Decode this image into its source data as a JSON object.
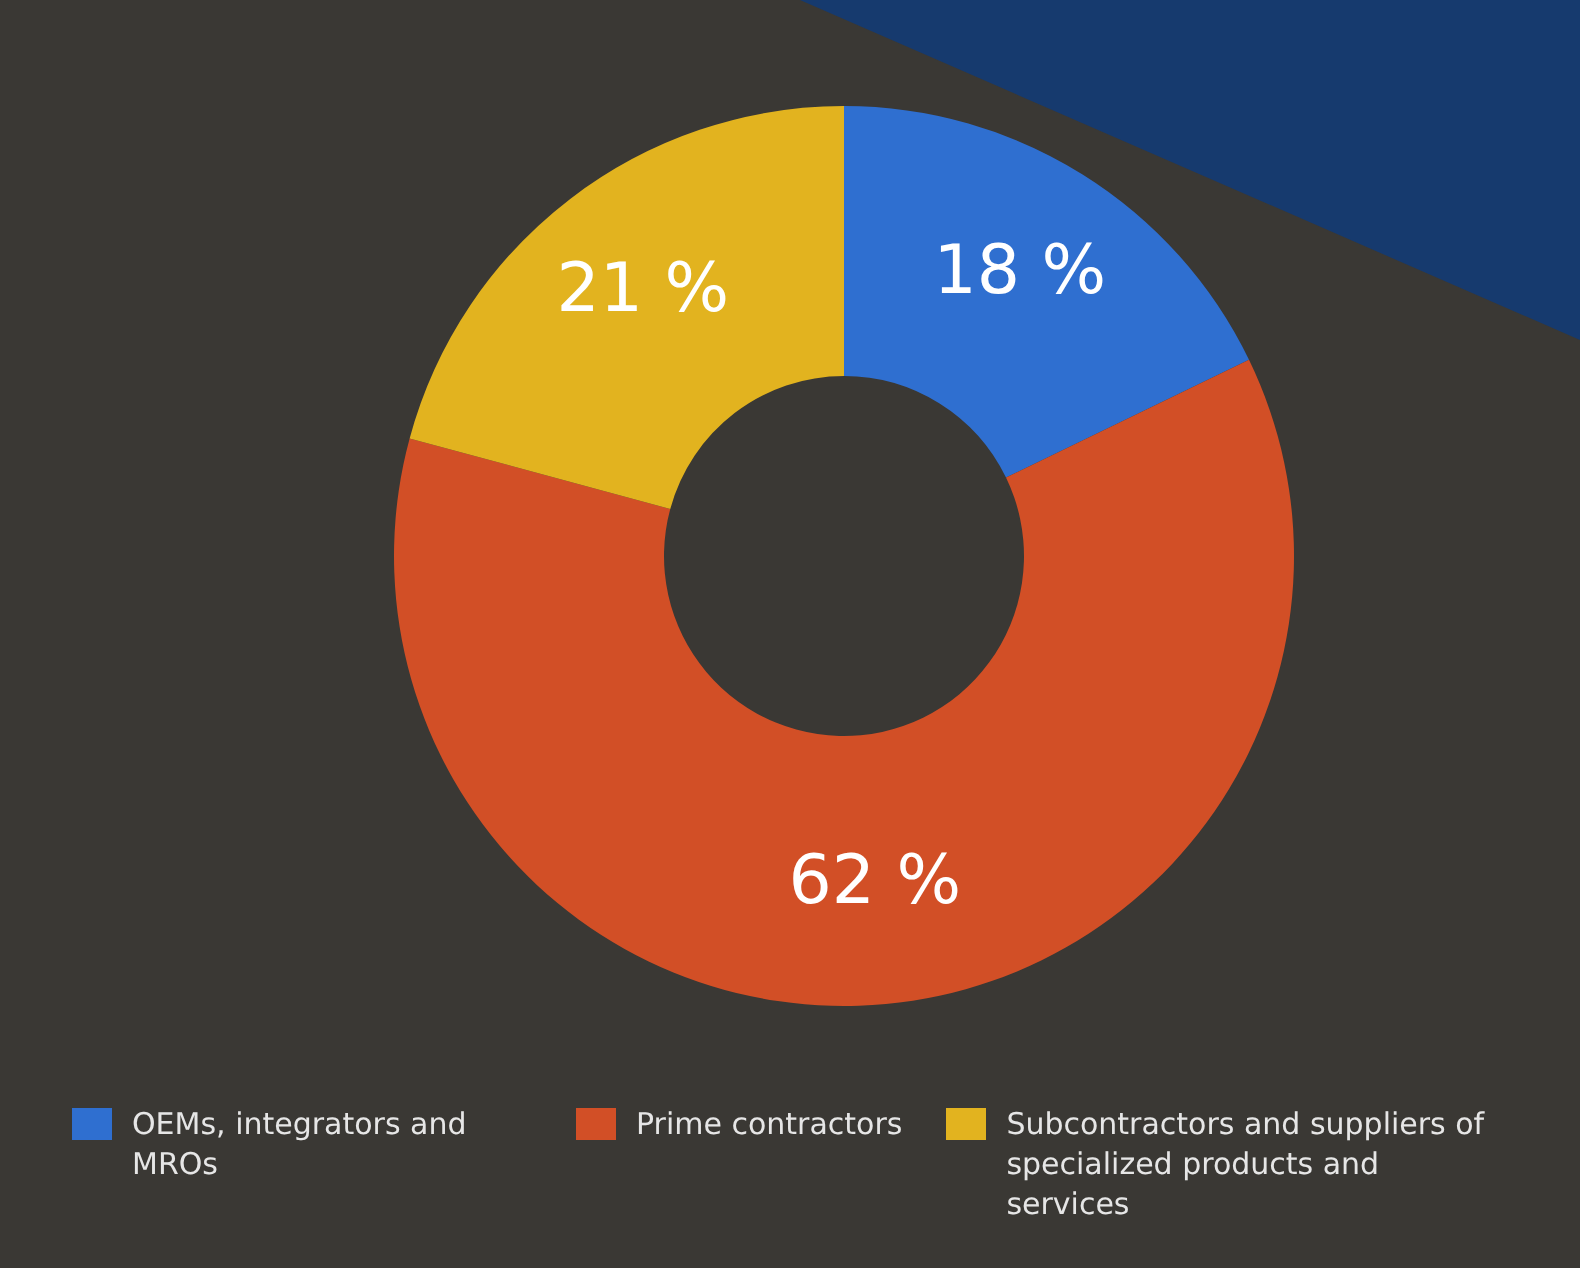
{
  "chart_data": {
    "type": "donut",
    "categories": [
      "OEMs, integrators and MROs",
      "Prime contractors",
      "Subcontractors and suppliers of specialized products and services"
    ],
    "values": [
      18,
      62,
      21
    ],
    "colors": [
      "#2f6fd0",
      "#d24f26",
      "#e2b31f"
    ],
    "value_labels": [
      "18 %",
      "62 %",
      "21 %"
    ],
    "legend": "bottom"
  }
}
